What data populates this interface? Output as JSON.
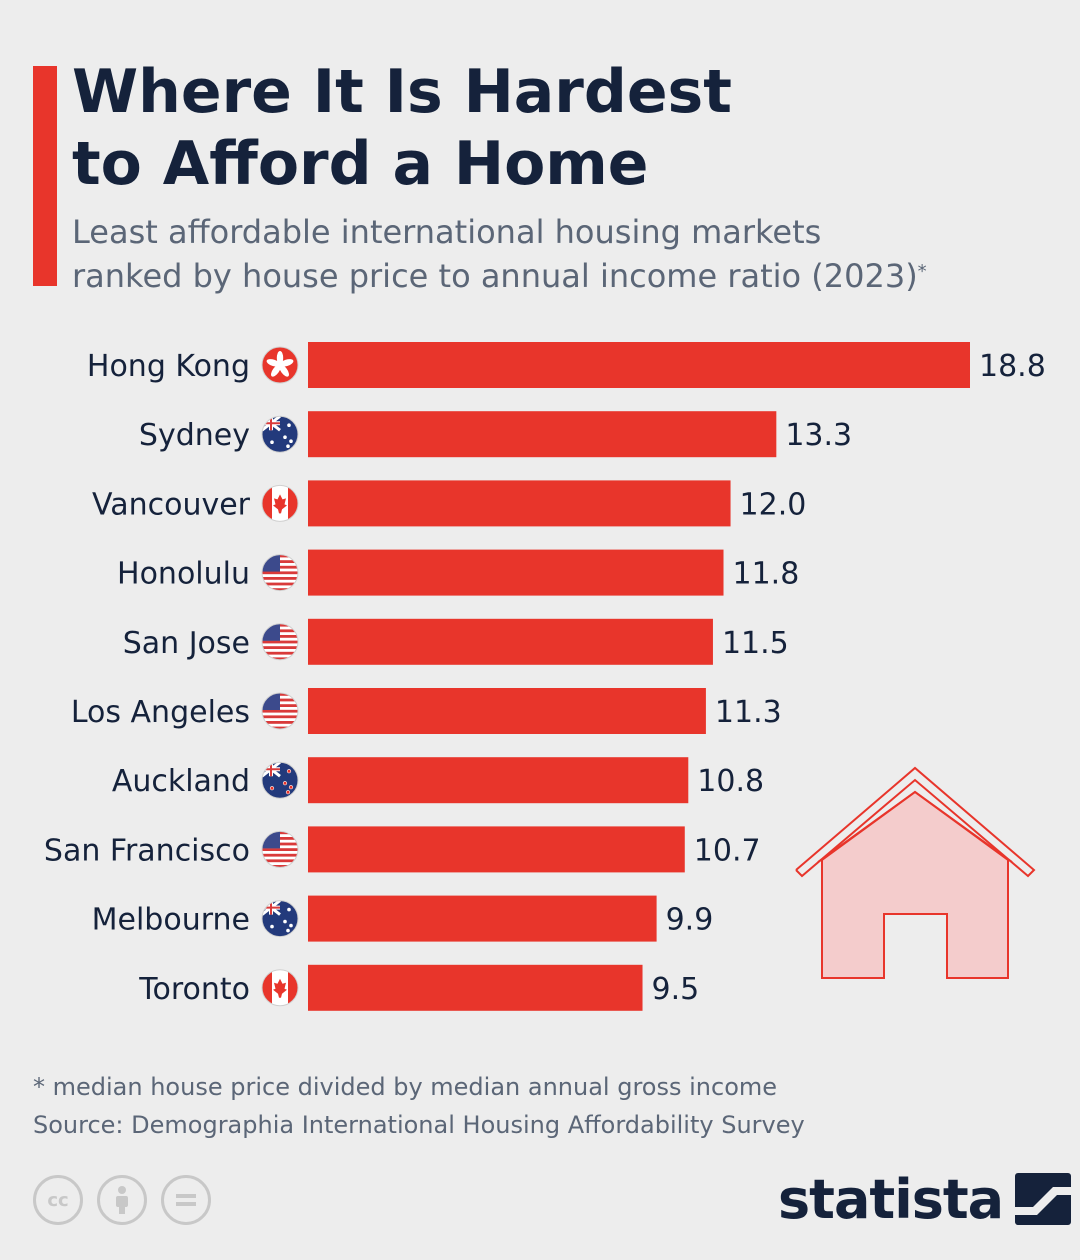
{
  "header": {
    "title_line1": "Where It Is Hardest",
    "title_line2": "to Afford a Home",
    "subtitle_line1": "Least affordable international housing markets",
    "subtitle_line2": "ranked by house price to annual income ratio (2023)",
    "subtitle_marker": "*"
  },
  "chart_data": {
    "type": "bar",
    "orientation": "horizontal",
    "title": "Where It Is Hardest to Afford a Home",
    "subtitle": "Least affordable international housing markets ranked by house price to annual income ratio (2023)*",
    "categories": [
      "Hong Kong",
      "Sydney",
      "Vancouver",
      "Honolulu",
      "San Jose",
      "Los Angeles",
      "Auckland",
      "San Francisco",
      "Melbourne",
      "Toronto"
    ],
    "values": [
      18.8,
      13.3,
      12.0,
      11.8,
      11.5,
      11.3,
      10.8,
      10.7,
      9.9,
      9.5
    ],
    "value_labels": [
      "18.8",
      "13.3",
      "12.0",
      "11.8",
      "11.5",
      "11.3",
      "10.8",
      "10.7",
      "9.9",
      "9.5"
    ],
    "flags": [
      "hong-kong-flag-icon",
      "australia-flag-icon",
      "canada-flag-icon",
      "usa-flag-icon",
      "usa-flag-icon",
      "usa-flag-icon",
      "new-zealand-flag-icon",
      "usa-flag-icon",
      "australia-flag-icon",
      "canada-flag-icon"
    ],
    "xlim": [
      0,
      18.8
    ],
    "grid": false,
    "bar_color": "#e8352b"
  },
  "footer": {
    "note": "* median house price divided by median annual gross income",
    "source": "Source: Demographia International Housing Affordability Survey",
    "brand": "statista",
    "license_icons": [
      "cc-icon",
      "attribution-icon",
      "no-derivatives-icon"
    ]
  },
  "colors": {
    "accent": "#e8352b",
    "title": "#15223b",
    "subtitle": "#5b6677",
    "background": "#ededed",
    "house_fill": "#f4cccc"
  }
}
